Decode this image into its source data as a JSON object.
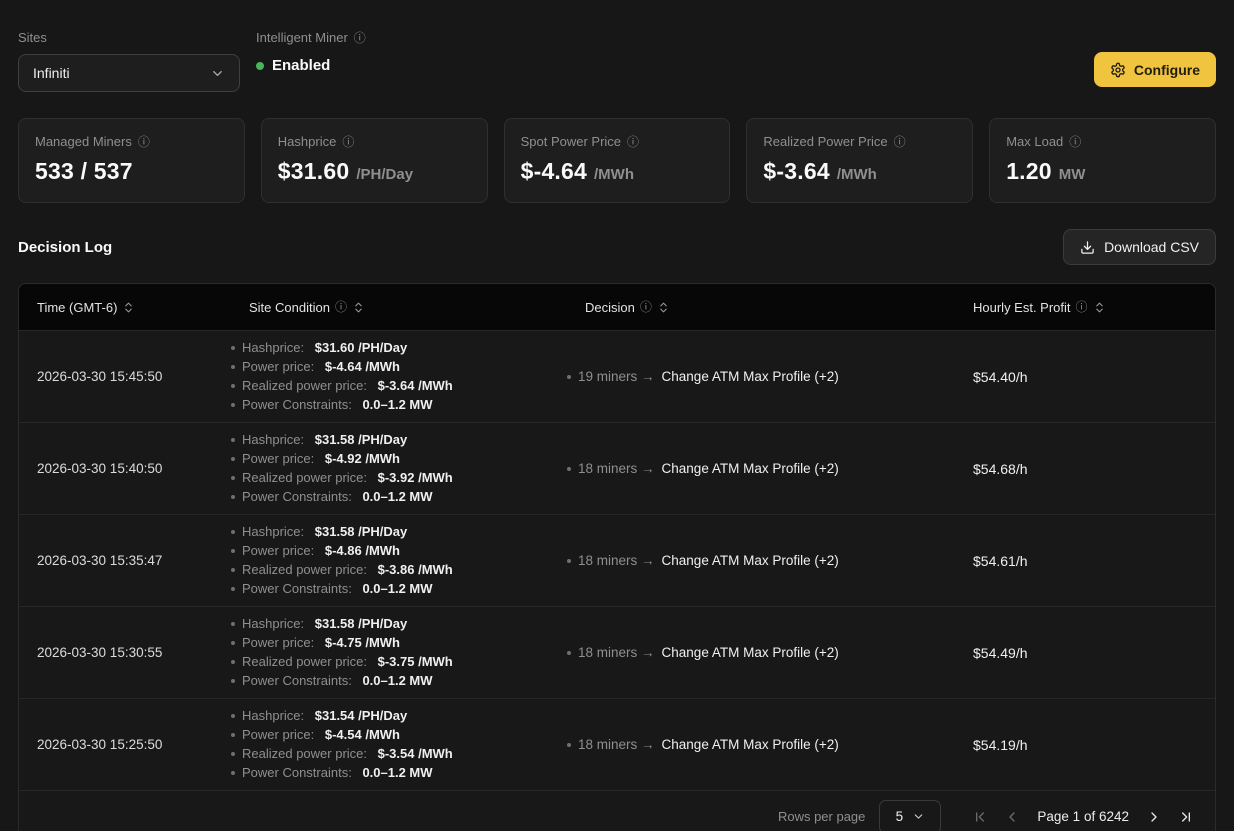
{
  "colors": {
    "accent_yellow": "#f0c43f",
    "status_green": "#46b55c"
  },
  "icons": {
    "info": "ⓘ"
  },
  "header": {
    "sites_label": "Sites",
    "site_selected": "Infiniti",
    "intelligent_miner_label": "Intelligent Miner",
    "status_text": "Enabled",
    "configure_button": "Configure"
  },
  "stats": [
    {
      "label": "Managed Miners",
      "value": "533 / 537",
      "unit": ""
    },
    {
      "label": "Hashprice",
      "value": "$31.60",
      "unit": "/PH/Day"
    },
    {
      "label": "Spot Power Price",
      "value": "$-4.64",
      "unit": "/MWh"
    },
    {
      "label": "Realized Power Price",
      "value": "$-3.64",
      "unit": "/MWh"
    },
    {
      "label": "Max Load",
      "value": "1.20",
      "unit": "MW"
    }
  ],
  "decision_log": {
    "title": "Decision Log",
    "download_button": "Download CSV",
    "columns": [
      {
        "label": "Time (GMT-6)"
      },
      {
        "label": "Site Condition"
      },
      {
        "label": "Decision"
      },
      {
        "label": "Hourly Est. Profit"
      }
    ],
    "rows": [
      {
        "time": "2026-03-30 15:45:50",
        "conditions": [
          {
            "label": "Hashprice: ",
            "value": "$31.60 /PH/Day"
          },
          {
            "label": "Power price: ",
            "value": "$-4.64 /MWh"
          },
          {
            "label": "Realized power price: ",
            "value": "$-3.64 /MWh"
          },
          {
            "label": "Power Constraints: ",
            "value": "0.0–1.2 MW"
          }
        ],
        "decision_prefix": "19 miners →",
        "decision_action": "Change ATM Max Profile (+2)",
        "profit": "$54.40/h"
      },
      {
        "time": "2026-03-30 15:40:50",
        "conditions": [
          {
            "label": "Hashprice: ",
            "value": "$31.58 /PH/Day"
          },
          {
            "label": "Power price: ",
            "value": "$-4.92 /MWh"
          },
          {
            "label": "Realized power price: ",
            "value": "$-3.92 /MWh"
          },
          {
            "label": "Power Constraints: ",
            "value": "0.0–1.2 MW"
          }
        ],
        "decision_prefix": "18 miners →",
        "decision_action": "Change ATM Max Profile (+2)",
        "profit": "$54.68/h"
      },
      {
        "time": "2026-03-30 15:35:47",
        "conditions": [
          {
            "label": "Hashprice: ",
            "value": "$31.58 /PH/Day"
          },
          {
            "label": "Power price: ",
            "value": "$-4.86 /MWh"
          },
          {
            "label": "Realized power price: ",
            "value": "$-3.86 /MWh"
          },
          {
            "label": "Power Constraints: ",
            "value": "0.0–1.2 MW"
          }
        ],
        "decision_prefix": "18 miners →",
        "decision_action": "Change ATM Max Profile (+2)",
        "profit": "$54.61/h"
      },
      {
        "time": "2026-03-30 15:30:55",
        "conditions": [
          {
            "label": "Hashprice: ",
            "value": "$31.58 /PH/Day"
          },
          {
            "label": "Power price: ",
            "value": "$-4.75 /MWh"
          },
          {
            "label": "Realized power price: ",
            "value": "$-3.75 /MWh"
          },
          {
            "label": "Power Constraints: ",
            "value": "0.0–1.2 MW"
          }
        ],
        "decision_prefix": "18 miners →",
        "decision_action": "Change ATM Max Profile (+2)",
        "profit": "$54.49/h"
      },
      {
        "time": "2026-03-30 15:25:50",
        "conditions": [
          {
            "label": "Hashprice: ",
            "value": "$31.54 /PH/Day"
          },
          {
            "label": "Power price: ",
            "value": "$-4.54 /MWh"
          },
          {
            "label": "Realized power price: ",
            "value": "$-3.54 /MWh"
          },
          {
            "label": "Power Constraints: ",
            "value": "0.0–1.2 MW"
          }
        ],
        "decision_prefix": "18 miners →",
        "decision_action": "Change ATM Max Profile (+2)",
        "profit": "$54.19/h"
      }
    ],
    "footer": {
      "rows_per_page_label": "Rows per page",
      "rows_per_page_value": "5",
      "page_status": "Page 1 of 6242"
    }
  }
}
